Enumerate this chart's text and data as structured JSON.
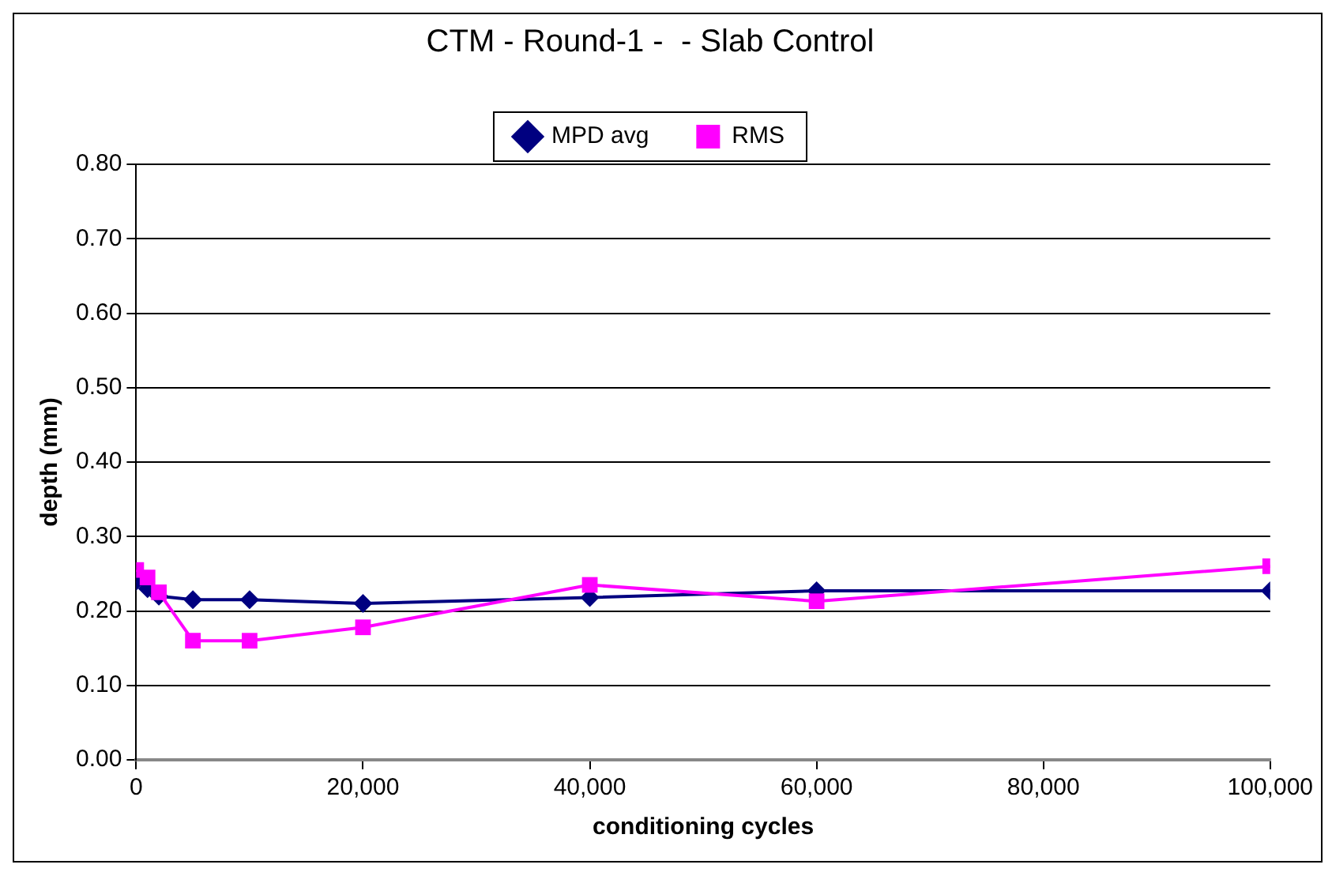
{
  "chart_data": {
    "type": "line",
    "title": "CTM - Round-1 -  - Slab Control",
    "xlabel": "conditioning cycles",
    "ylabel": "depth (mm)",
    "x": [
      0,
      1000,
      2000,
      5000,
      10000,
      20000,
      40000,
      60000,
      100000
    ],
    "series": [
      {
        "name": "MPD avg",
        "color": "#000080",
        "marker": "diamond",
        "values": [
          0.24,
          0.23,
          0.22,
          0.215,
          0.215,
          0.21,
          0.218,
          0.227,
          0.227
        ]
      },
      {
        "name": "RMS",
        "color": "#ff00ff",
        "marker": "square",
        "values": [
          0.255,
          0.245,
          0.225,
          0.16,
          0.16,
          0.178,
          0.235,
          0.213,
          0.26
        ]
      }
    ],
    "xlim": [
      0,
      100000
    ],
    "xticks": [
      {
        "value": 0,
        "label": "0"
      },
      {
        "value": 20000,
        "label": "20,000"
      },
      {
        "value": 40000,
        "label": "40,000"
      },
      {
        "value": 60000,
        "label": "60,000"
      },
      {
        "value": 80000,
        "label": "80,000"
      },
      {
        "value": 100000,
        "label": "100,000"
      }
    ],
    "ylim": [
      0,
      0.8
    ],
    "yticks": [
      {
        "value": 0,
        "label": "0.00"
      },
      {
        "value": 0.1,
        "label": "0.10"
      },
      {
        "value": 0.2,
        "label": "0.20"
      },
      {
        "value": 0.3,
        "label": "0.30"
      },
      {
        "value": 0.4,
        "label": "0.40"
      },
      {
        "value": 0.5,
        "label": "0.50"
      },
      {
        "value": 0.6,
        "label": "0.60"
      },
      {
        "value": 0.7,
        "label": "0.70"
      },
      {
        "value": 0.8,
        "label": "0.80"
      }
    ],
    "grid": "y",
    "legend": "top",
    "line_style": "solid"
  }
}
